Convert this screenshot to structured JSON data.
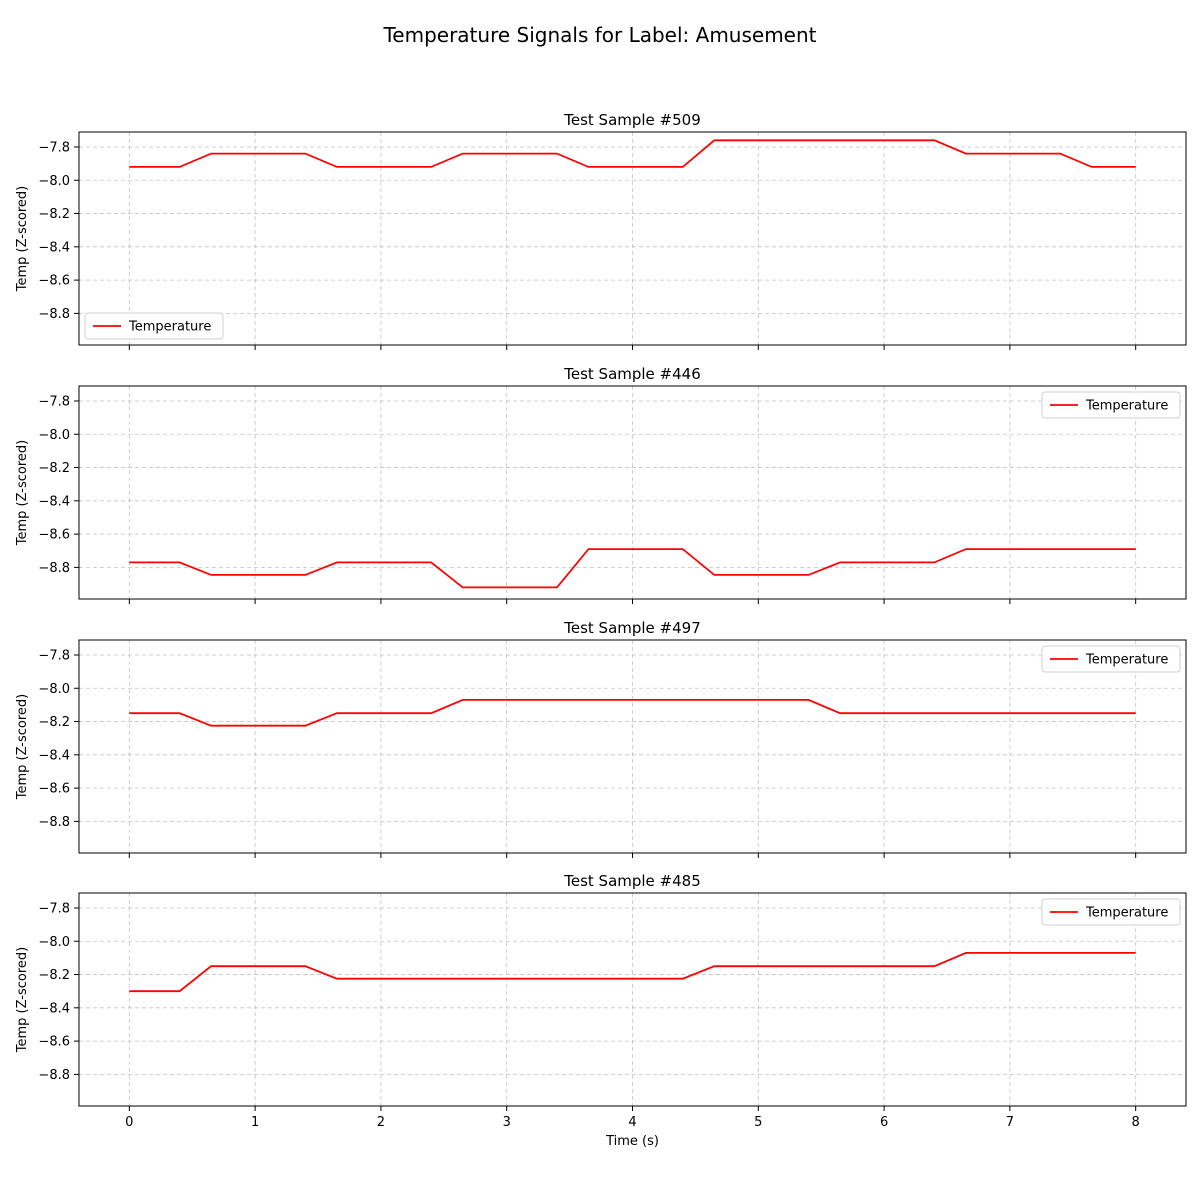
{
  "figure": {
    "title": "Temperature Signals for Label: Amusement",
    "xlabel": "Time (s)",
    "ylabel": "Temp (Z-scored)",
    "line_color": "#ff0000"
  },
  "chart_data": [
    {
      "type": "line",
      "title": "Test Sample #509",
      "xlabel": "",
      "ylabel": "Temp (Z-scored)",
      "xlim": [
        -0.4,
        8.4
      ],
      "ylim": [
        -8.99,
        -7.71
      ],
      "xticks": [
        0,
        1,
        2,
        3,
        4,
        5,
        6,
        7,
        8
      ],
      "yticks": [
        -7.8,
        -8.0,
        -8.2,
        -8.4,
        -8.6,
        -8.8
      ],
      "ytick_labels": [
        "−7.8",
        "−8.0",
        "−8.2",
        "−8.4",
        "−8.6",
        "−8.8"
      ],
      "show_xtick_labels": false,
      "grid": true,
      "legend_position": "lower-left",
      "series": [
        {
          "name": "Temperature",
          "color": "#ff0000",
          "x": [
            0,
            0.4,
            0.65,
            1.4,
            1.65,
            2.4,
            2.65,
            3.4,
            3.65,
            4.4,
            4.65,
            6.4,
            6.65,
            7.4,
            7.65,
            8
          ],
          "y": [
            -7.92,
            -7.92,
            -7.84,
            -7.84,
            -7.92,
            -7.92,
            -7.84,
            -7.84,
            -7.92,
            -7.92,
            -7.76,
            -7.76,
            -7.84,
            -7.84,
            -7.92,
            -7.92
          ]
        }
      ]
    },
    {
      "type": "line",
      "title": "Test Sample #446",
      "xlabel": "",
      "ylabel": "Temp (Z-scored)",
      "xlim": [
        -0.4,
        8.4
      ],
      "ylim": [
        -8.99,
        -7.71
      ],
      "xticks": [
        0,
        1,
        2,
        3,
        4,
        5,
        6,
        7,
        8
      ],
      "yticks": [
        -7.8,
        -8.0,
        -8.2,
        -8.4,
        -8.6,
        -8.8
      ],
      "ytick_labels": [
        "−7.8",
        "−8.0",
        "−8.2",
        "−8.4",
        "−8.6",
        "−8.8"
      ],
      "show_xtick_labels": false,
      "grid": true,
      "legend_position": "upper-right",
      "series": [
        {
          "name": "Temperature",
          "color": "#ff0000",
          "x": [
            0,
            0.4,
            0.65,
            1.4,
            1.65,
            2.4,
            2.65,
            3.4,
            3.65,
            4.4,
            4.65,
            5.4,
            5.65,
            6.4,
            6.65,
            8
          ],
          "y": [
            -8.77,
            -8.77,
            -8.845,
            -8.845,
            -8.77,
            -8.77,
            -8.92,
            -8.92,
            -8.69,
            -8.69,
            -8.845,
            -8.845,
            -8.77,
            -8.77,
            -8.69,
            -8.69
          ]
        }
      ]
    },
    {
      "type": "line",
      "title": "Test Sample #497",
      "xlabel": "",
      "ylabel": "Temp (Z-scored)",
      "xlim": [
        -0.4,
        8.4
      ],
      "ylim": [
        -8.99,
        -7.71
      ],
      "xticks": [
        0,
        1,
        2,
        3,
        4,
        5,
        6,
        7,
        8
      ],
      "yticks": [
        -7.8,
        -8.0,
        -8.2,
        -8.4,
        -8.6,
        -8.8
      ],
      "ytick_labels": [
        "−7.8",
        "−8.0",
        "−8.2",
        "−8.4",
        "−8.6",
        "−8.8"
      ],
      "show_xtick_labels": false,
      "grid": true,
      "legend_position": "upper-right",
      "series": [
        {
          "name": "Temperature",
          "color": "#ff0000",
          "x": [
            0,
            0.4,
            0.65,
            1.4,
            1.65,
            2.4,
            2.65,
            5.4,
            5.65,
            8
          ],
          "y": [
            -8.15,
            -8.15,
            -8.225,
            -8.225,
            -8.15,
            -8.15,
            -8.07,
            -8.07,
            -8.15,
            -8.15
          ]
        }
      ]
    },
    {
      "type": "line",
      "title": "Test Sample #485",
      "xlabel": "Time (s)",
      "ylabel": "Temp (Z-scored)",
      "xlim": [
        -0.4,
        8.4
      ],
      "ylim": [
        -8.99,
        -7.71
      ],
      "xticks": [
        0,
        1,
        2,
        3,
        4,
        5,
        6,
        7,
        8
      ],
      "xtick_labels": [
        "0",
        "1",
        "2",
        "3",
        "4",
        "5",
        "6",
        "7",
        "8"
      ],
      "yticks": [
        -7.8,
        -8.0,
        -8.2,
        -8.4,
        -8.6,
        -8.8
      ],
      "ytick_labels": [
        "−7.8",
        "−8.0",
        "−8.2",
        "−8.4",
        "−8.6",
        "−8.8"
      ],
      "show_xtick_labels": true,
      "grid": true,
      "legend_position": "upper-right",
      "series": [
        {
          "name": "Temperature",
          "color": "#ff0000",
          "x": [
            0,
            0.4,
            0.65,
            1.4,
            1.65,
            4.4,
            4.65,
            6.4,
            6.65,
            8
          ],
          "y": [
            -8.3,
            -8.3,
            -8.15,
            -8.15,
            -8.225,
            -8.225,
            -8.15,
            -8.15,
            -8.07,
            -8.07
          ]
        }
      ]
    }
  ]
}
